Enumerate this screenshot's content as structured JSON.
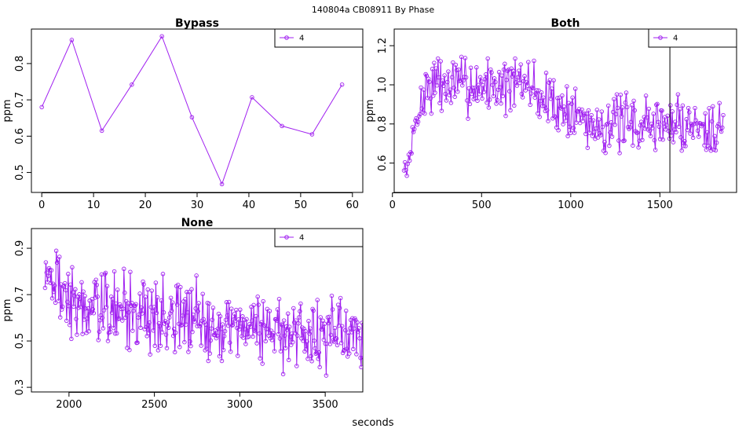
{
  "page": {
    "title": "140804a    CB08911   By Phase",
    "xlabel": "seconds"
  },
  "colors": {
    "series": "#a020f0",
    "frame": "#000000"
  },
  "chart_data": [
    {
      "type": "line",
      "title": "Bypass",
      "ylabel": "ppm",
      "xlim": [
        -2,
        62
      ],
      "ylim": [
        0.445,
        0.895
      ],
      "xticks": [
        0,
        10,
        20,
        30,
        40,
        50,
        60
      ],
      "yticks": [
        0.5,
        0.6,
        0.7,
        0.8
      ],
      "series": [
        {
          "name": "4",
          "x": [
            0,
            5.8,
            11.6,
            17.4,
            23.2,
            29,
            34.8,
            40.6,
            46.4,
            52.2,
            58
          ],
          "y": [
            0.68,
            0.865,
            0.615,
            0.742,
            0.875,
            0.652,
            0.468,
            0.707,
            0.628,
            0.605,
            0.742
          ]
        }
      ],
      "vline": null
    },
    {
      "type": "line",
      "title": "Both",
      "ylabel": "ppm",
      "xlim": [
        10,
        1930
      ],
      "ylim": [
        0.45,
        1.285
      ],
      "xticks": [
        0,
        500,
        1000,
        1500
      ],
      "yticks": [
        0.6,
        0.8,
        1.0,
        1.2
      ],
      "series": [
        {
          "name": "4",
          "n": 340,
          "x_start": 65,
          "x_end": 1855,
          "seed": 7
        }
      ],
      "vline": 1556
    },
    {
      "type": "line",
      "title": "None",
      "ylabel": "ppm",
      "xlim": [
        1780,
        3720
      ],
      "ylim": [
        0.28,
        0.985
      ],
      "xticks": [
        2000,
        2500,
        3000,
        3500
      ],
      "yticks": [
        0.3,
        0.5,
        0.7,
        0.9
      ],
      "series": [
        {
          "name": "4",
          "n": 400,
          "x_start": 1860,
          "x_end": 3720,
          "seed": 19
        }
      ],
      "vline": null
    }
  ]
}
